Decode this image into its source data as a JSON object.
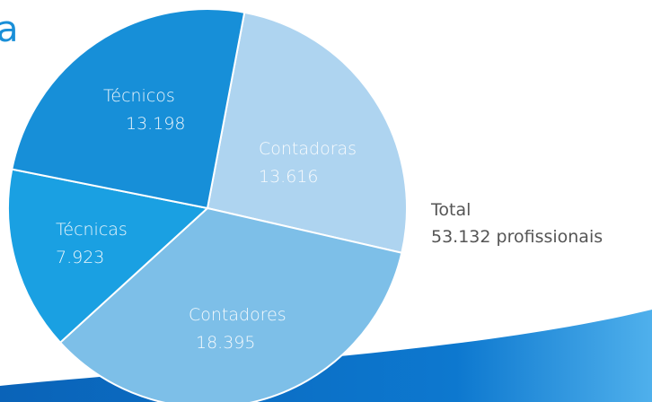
{
  "chart_data": {
    "type": "pie",
    "title": "a",
    "categories": [
      "Contadoras",
      "Contadores",
      "Técnicas",
      "Técnicos"
    ],
    "values": [
      13616,
      18395,
      7923,
      13198
    ],
    "value_labels": [
      "13.616",
      "18.395",
      "7.923",
      "13.198"
    ],
    "colors": [
      "#aed4f0",
      "#7dbfe8",
      "#1aa0e2",
      "#178fd8"
    ],
    "annotation": {
      "label": "Total",
      "text": "53.132 profissionais"
    }
  }
}
